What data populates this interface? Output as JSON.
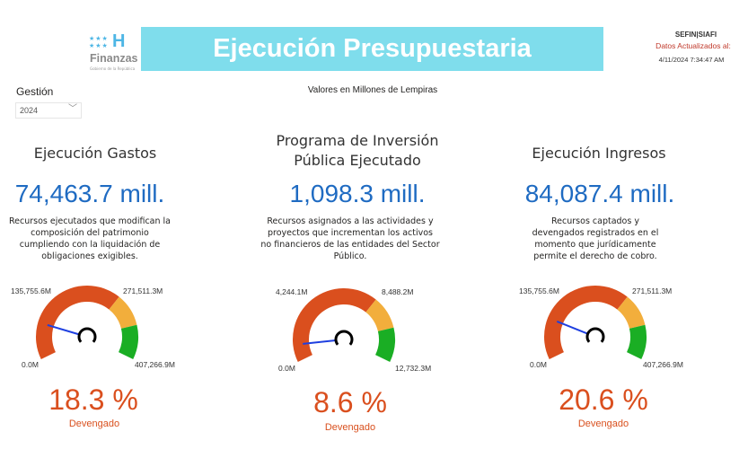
{
  "header": {
    "logo_text": "Finanzas",
    "logo_subtext": "Gobierno de la República",
    "title": "Ejecución Presupuestaria",
    "source": "SEFIN|SIAFI",
    "updated_label": "Datos Actualizados al:",
    "updated_value": "4/11/2024 7:34:47 AM"
  },
  "filter": {
    "label": "Gestión",
    "selected": "2024"
  },
  "subtitle": "Valores en Millones de Lempiras",
  "colors": {
    "banner": "#7FDDEC",
    "value_blue": "#1F6BC2",
    "red": "#DA4F1E",
    "orange": "#F2AE3C",
    "green": "#1AAE24",
    "needle": "#1E3FE0"
  },
  "panels": [
    {
      "title": [
        "Ejecución Gastos"
      ],
      "value": "74,463.7 mill.",
      "description": [
        "Recursos ejecutados que modifican la",
        "composición del patrimonio",
        "cumpliendo con la liquidación de",
        "obligaciones exigibles."
      ],
      "gauge": {
        "min_label": "0.0M",
        "t1_label": "135,755.6M",
        "t2_label": "271,511.3M",
        "max_label": "407,266.9M",
        "percent": 18.3,
        "bands": [
          0.667,
          0.83,
          1
        ]
      },
      "percent_label": "18.3 %",
      "caption": "Devengado"
    },
    {
      "title": [
        "Programa de Inversión",
        "Pública Ejecutado"
      ],
      "value": "1,098.3 mill.",
      "description": [
        "Recursos asignados a las actividades y",
        "proyectos que incrementan los activos",
        "no financieros de las entidades del Sector",
        "Público."
      ],
      "gauge": {
        "min_label": "0.0M",
        "t1_label": "4,244.1M",
        "t2_label": "8,488.2M",
        "max_label": "12,732.3M",
        "percent": 8.6,
        "bands": [
          0.667,
          0.83,
          1
        ]
      },
      "percent_label": "8.6 %",
      "caption": "Devengado"
    },
    {
      "title": [
        "Ejecución Ingresos"
      ],
      "value": "84,087.4 mill.",
      "description": [
        "Recursos captados y",
        "devengados registrados en el",
        "momento que jurídicamente",
        "permite el derecho de cobro."
      ],
      "gauge": {
        "min_label": "0.0M",
        "t1_label": "135,755.6M",
        "t2_label": "271,511.3M",
        "max_label": "407,266.9M",
        "percent": 20.6,
        "bands": [
          0.667,
          0.83,
          1
        ]
      },
      "percent_label": "20.6 %",
      "caption": "Devengado"
    }
  ]
}
